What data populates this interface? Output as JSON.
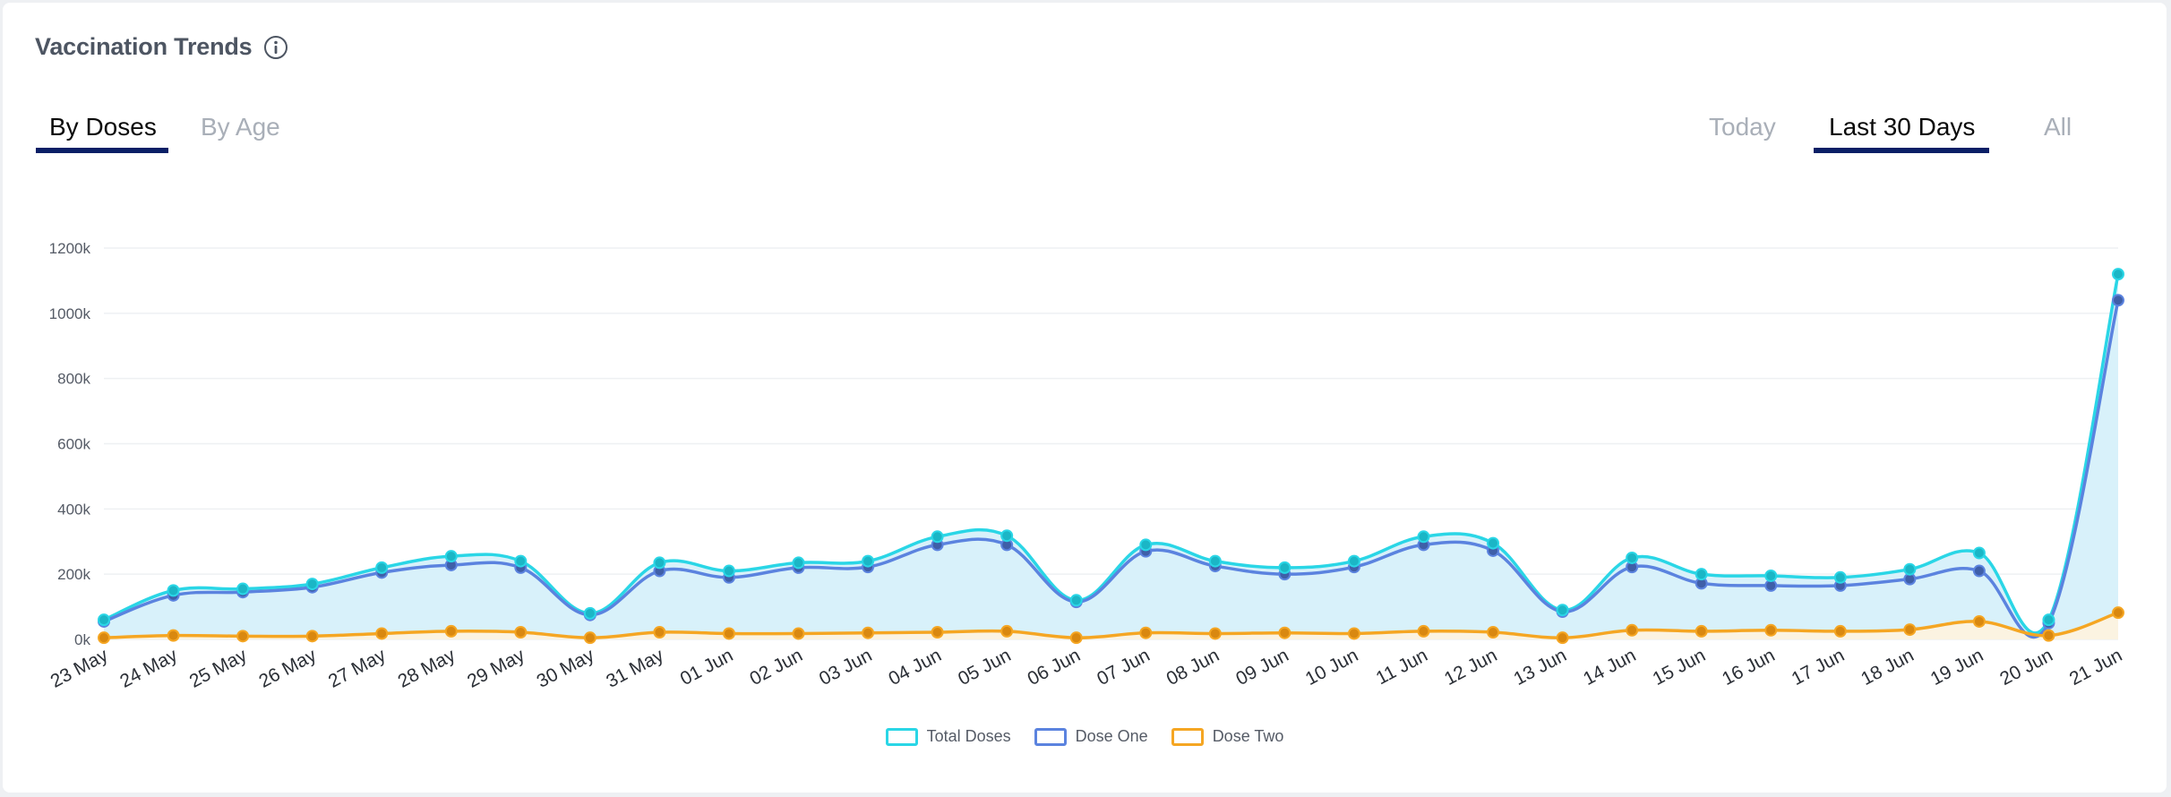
{
  "card": {
    "title": "Vaccination Trends",
    "icon": "info-icon"
  },
  "tabs_left": [
    {
      "label": "By Doses",
      "active": true
    },
    {
      "label": "By Age",
      "active": false
    }
  ],
  "tabs_right": [
    {
      "label": "Today",
      "active": false
    },
    {
      "label": "Last 30 Days",
      "active": true
    },
    {
      "label": "All",
      "active": false
    }
  ],
  "colors": {
    "total": "#2ad6e6",
    "total_marker": "#1bb6c6",
    "dose_one": "#5b83df",
    "dose_one_marker": "#3f5fa8",
    "dose_two": "#f5a623",
    "dose_two_marker": "#d98810",
    "area_total": "#d6f0fa",
    "area_dose_two": "#fdf2df",
    "accent": "#0a1f66"
  },
  "chart_data": {
    "type": "area",
    "categories": [
      "23 May",
      "24 May",
      "25 May",
      "26 May",
      "27 May",
      "28 May",
      "29 May",
      "30 May",
      "31 May",
      "01 Jun",
      "02 Jun",
      "03 Jun",
      "04 Jun",
      "05 Jun",
      "06 Jun",
      "07 Jun",
      "08 Jun",
      "09 Jun",
      "10 Jun",
      "11 Jun",
      "12 Jun",
      "13 Jun",
      "14 Jun",
      "15 Jun",
      "16 Jun",
      "17 Jun",
      "18 Jun",
      "19 Jun",
      "20 Jun",
      "21 Jun"
    ],
    "series": [
      {
        "name": "Total Doses",
        "values": [
          60,
          150,
          155,
          170,
          220,
          255,
          240,
          80,
          235,
          210,
          235,
          240,
          315,
          318,
          120,
          290,
          240,
          220,
          240,
          315,
          295,
          90,
          250,
          200,
          195,
          190,
          215,
          265,
          60,
          1120
        ]
      },
      {
        "name": "Dose One",
        "values": [
          55,
          135,
          145,
          160,
          205,
          228,
          220,
          75,
          210,
          190,
          220,
          222,
          290,
          290,
          115,
          270,
          225,
          200,
          222,
          290,
          272,
          85,
          222,
          172,
          165,
          165,
          185,
          210,
          50,
          1040
        ]
      },
      {
        "name": "Dose Two",
        "values": [
          5,
          12,
          10,
          10,
          18,
          25,
          22,
          5,
          22,
          18,
          18,
          20,
          22,
          25,
          5,
          20,
          18,
          20,
          18,
          25,
          22,
          5,
          28,
          25,
          28,
          25,
          30,
          55,
          12,
          82
        ]
      }
    ],
    "y_ticks": [
      "0k",
      "200k",
      "400k",
      "600k",
      "800k",
      "1000k",
      "1200k"
    ],
    "ylim": [
      0,
      1200
    ],
    "grid": true,
    "legend_position": "bottom-center"
  }
}
